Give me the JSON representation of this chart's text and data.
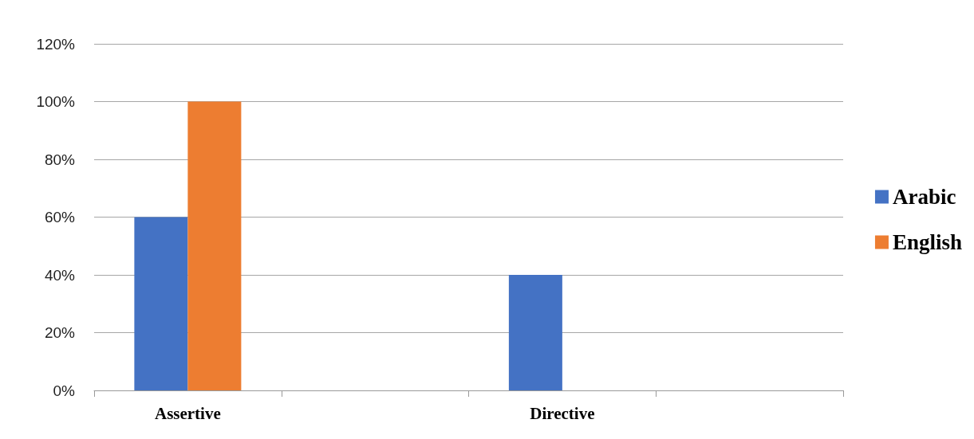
{
  "chart_data": {
    "type": "bar",
    "categories": [
      "Assertive",
      null,
      "Directive",
      null
    ],
    "series": [
      {
        "name": "Arabic",
        "color": "#4472c4",
        "values": [
          60,
          null,
          40,
          null
        ]
      },
      {
        "name": "English",
        "color": "#ed7d31",
        "values": [
          100,
          null,
          0,
          null
        ]
      }
    ],
    "ylim": [
      0,
      120
    ],
    "yticks": [
      {
        "value": 0,
        "label": "0%"
      },
      {
        "value": 20,
        "label": "20%"
      },
      {
        "value": 40,
        "label": "40%"
      },
      {
        "value": 60,
        "label": "60%"
      },
      {
        "value": 80,
        "label": "80%"
      },
      {
        "value": 100,
        "label": "100%"
      },
      {
        "value": 120,
        "label": "120%"
      }
    ],
    "grid": "y",
    "legend": "right"
  }
}
